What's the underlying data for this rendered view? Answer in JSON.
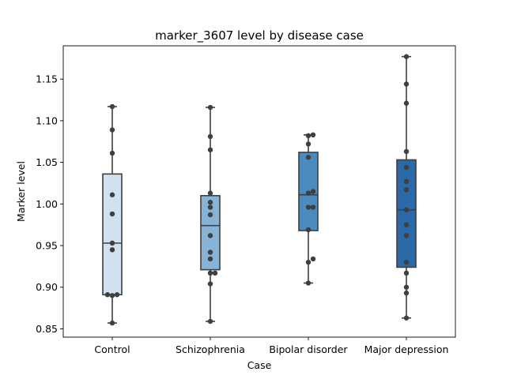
{
  "chart_data": {
    "type": "box",
    "title": "marker_3607 level by disease case",
    "xlabel": "Case",
    "ylabel": "Marker level",
    "ylim": [
      0.84,
      1.19
    ],
    "yticks": [
      0.85,
      0.9,
      0.95,
      1.0,
      1.05,
      1.1,
      1.15
    ],
    "ytick_labels": [
      "0.85",
      "0.90",
      "0.95",
      "1.00",
      "1.05",
      "1.10",
      "1.15"
    ],
    "grid": false,
    "legend": "none",
    "categories": [
      "Control",
      "Schizophrenia",
      "Bipolar disorder",
      "Major depression"
    ],
    "colors": [
      "#d2e1f0",
      "#87b4d6",
      "#4a8cc0",
      "#2b6aa8"
    ],
    "boxes": [
      {
        "whisker_low": 0.857,
        "q1": 0.891,
        "median": 0.953,
        "q3": 1.036,
        "whisker_high": 1.117
      },
      {
        "whisker_low": 0.859,
        "q1": 0.921,
        "median": 0.974,
        "q3": 1.01,
        "whisker_high": 1.116
      },
      {
        "whisker_low": 0.905,
        "q1": 0.968,
        "median": 1.011,
        "q3": 1.062,
        "whisker_high": 1.083
      },
      {
        "whisker_low": 0.863,
        "q1": 0.924,
        "median": 0.993,
        "q3": 1.053,
        "whisker_high": 1.177
      }
    ],
    "points": [
      [
        1.117,
        1.089,
        1.061,
        1.011,
        0.988,
        0.953,
        0.945,
        0.891,
        0.89,
        0.891,
        0.857
      ],
      [
        1.116,
        1.081,
        1.065,
        1.013,
        1.002,
        0.996,
        0.987,
        0.962,
        0.942,
        0.934,
        0.917,
        0.917,
        0.904,
        0.859
      ],
      [
        1.083,
        1.082,
        1.072,
        1.056,
        1.015,
        1.013,
        0.996,
        0.996,
        0.969,
        0.934,
        0.93,
        0.905
      ],
      [
        1.177,
        1.144,
        1.121,
        1.063,
        1.044,
        1.027,
        1.017,
        0.993,
        0.975,
        0.962,
        0.93,
        0.917,
        0.9,
        0.893,
        0.863
      ]
    ]
  }
}
